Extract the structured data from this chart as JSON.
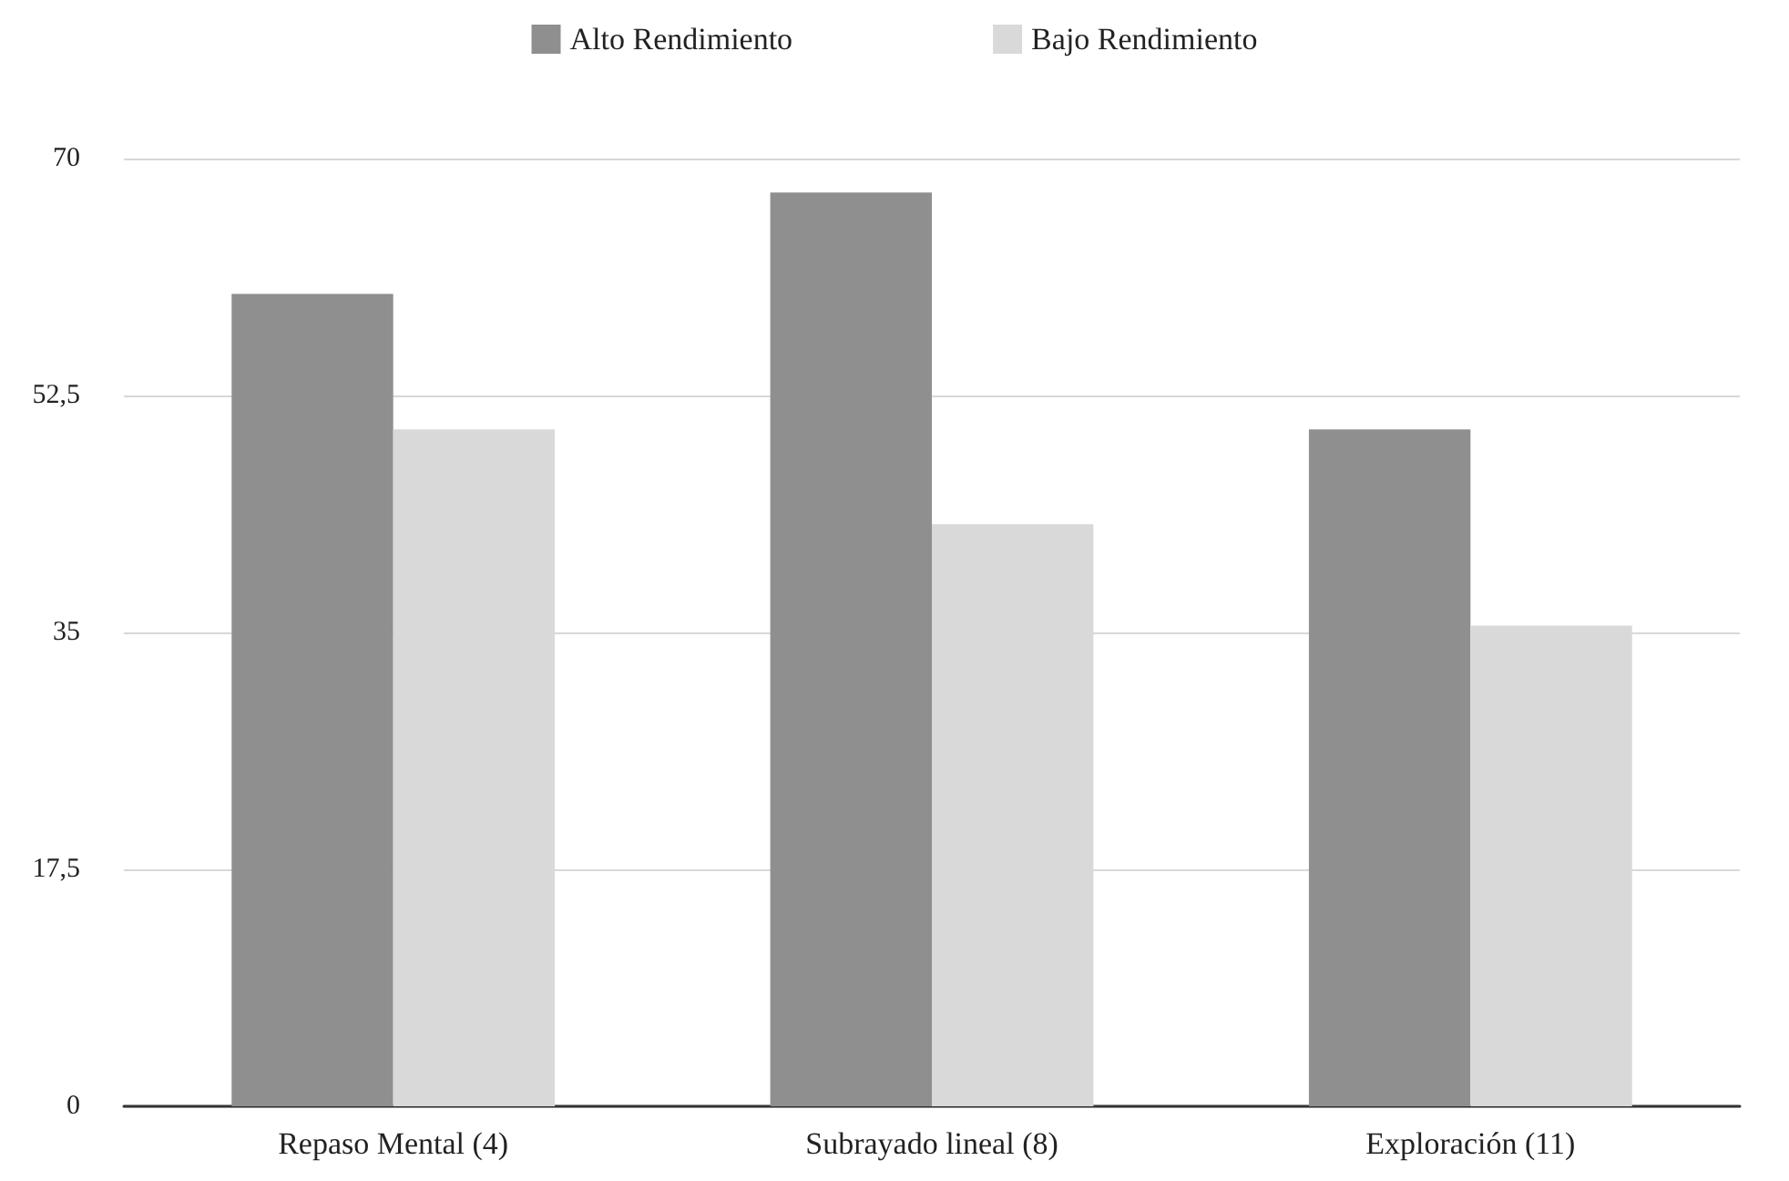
{
  "chart_data": {
    "type": "bar",
    "categories": [
      "Repaso Mental (4)",
      "Subrayado lineal (8)",
      "Exploración (11)"
    ],
    "series": [
      {
        "name": "Alto Rendimiento",
        "color": "#8f8f8f",
        "values": [
          60,
          67.5,
          50
        ]
      },
      {
        "name": "Bajo Rendimiento",
        "color": "#d9d9d9",
        "values": [
          50,
          43,
          35.5
        ]
      }
    ],
    "ylim": [
      0,
      70
    ],
    "yticks": [
      0,
      {
        "value": 17.5,
        "label": "17,5"
      },
      35,
      {
        "value": 52.5,
        "label": "52,5"
      },
      70
    ],
    "grid": "y",
    "legend": "top"
  }
}
